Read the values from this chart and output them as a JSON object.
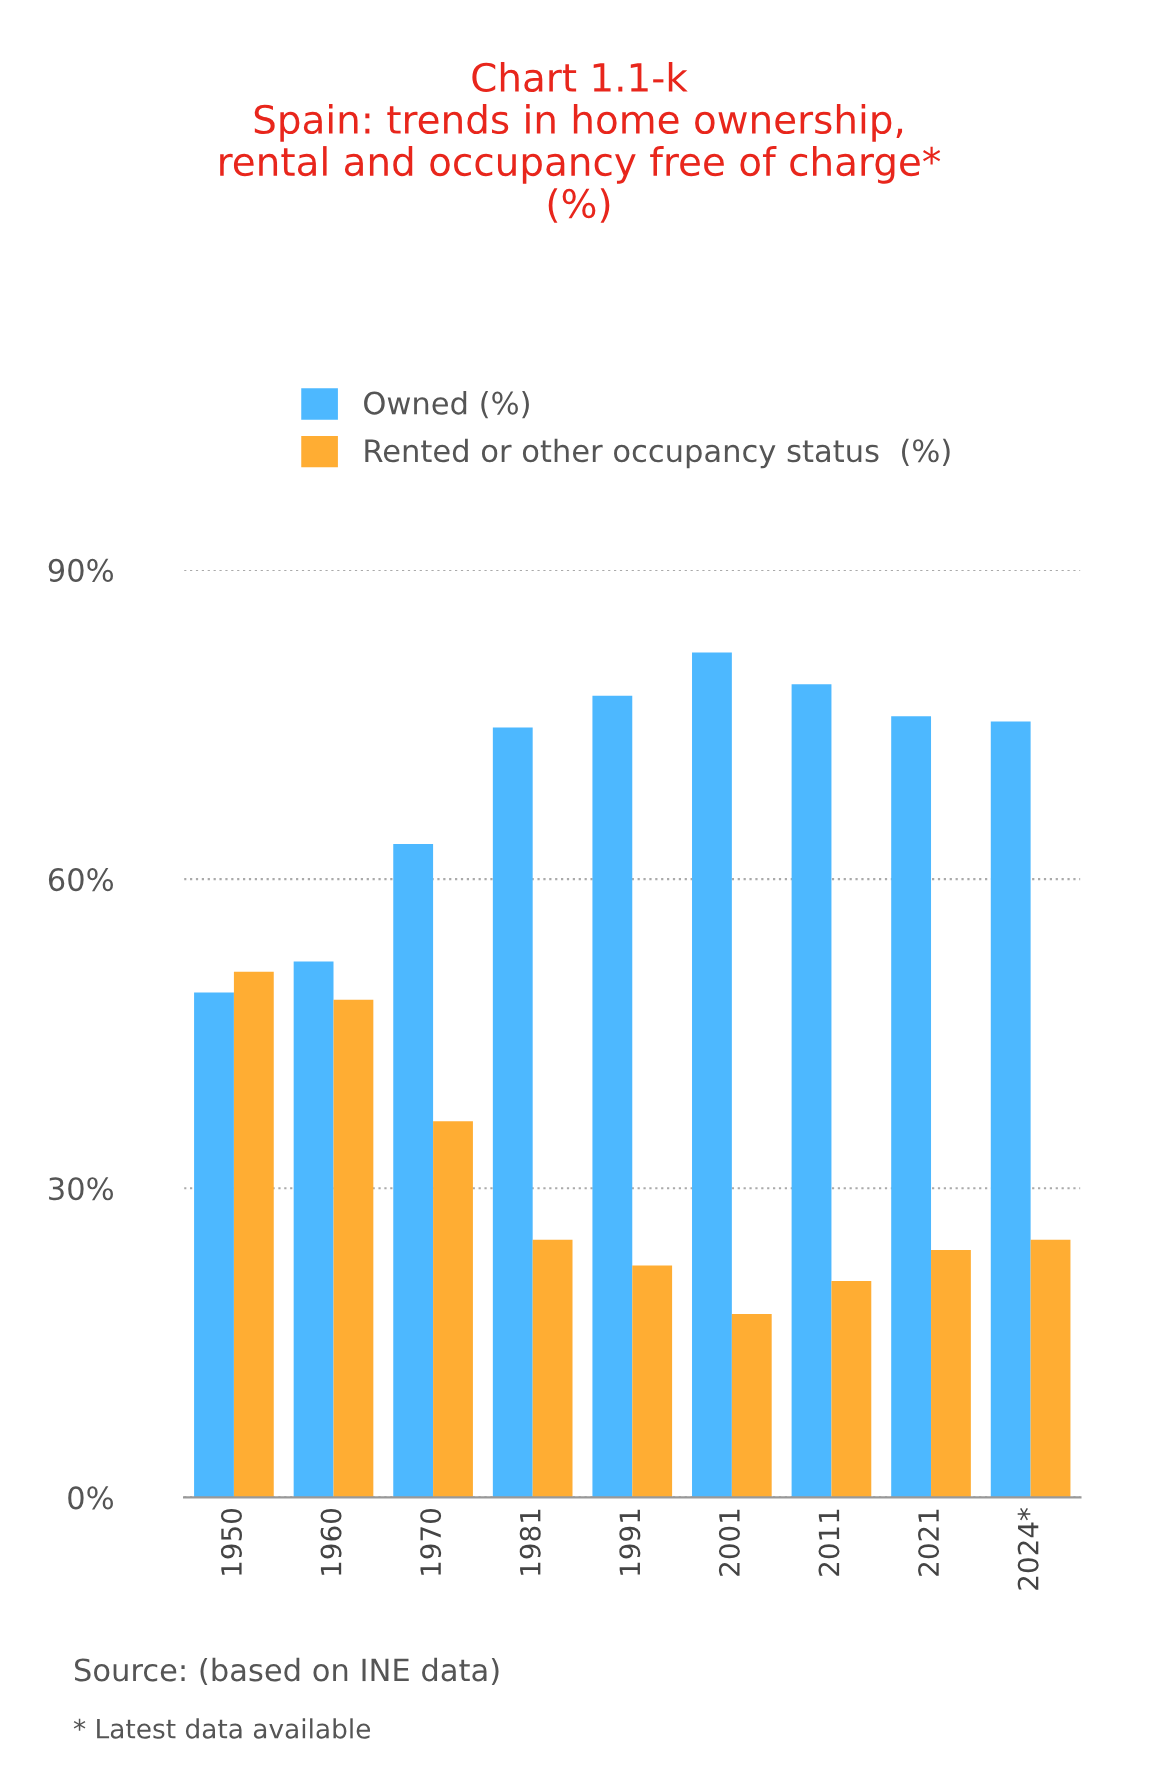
{
  "chart_data": {
    "type": "bar",
    "title": "Chart 1.1-k\nSpain: trends in home ownership,\nrental and occupancy free of charge*\n(%)",
    "categories": [
      "1950",
      "1960",
      "1970",
      "1981",
      "1991",
      "2001",
      "2011",
      "2021",
      "2024*"
    ],
    "series": [
      {
        "name": "Owned (%)",
        "color": "#4db8ff",
        "values": [
          49,
          52,
          63.4,
          74.7,
          77.8,
          82,
          78.9,
          75.8,
          75.3
        ]
      },
      {
        "name": "Rented or other occupancy status  (%)",
        "color": "#ffad33",
        "values": [
          51,
          48.3,
          36.5,
          25,
          22.5,
          17.8,
          21,
          24,
          25
        ]
      }
    ],
    "ylim": [
      0,
      90
    ],
    "yticks": [
      {
        "value": 0,
        "label": "0%"
      },
      {
        "value": 30,
        "label": "30%"
      },
      {
        "value": 60,
        "label": "60%"
      },
      {
        "value": 90,
        "label": "90%"
      }
    ],
    "grid": "y",
    "legend": "top left",
    "annotations": [
      "Source: (based on INE data)",
      "* Latest data available"
    ]
  }
}
